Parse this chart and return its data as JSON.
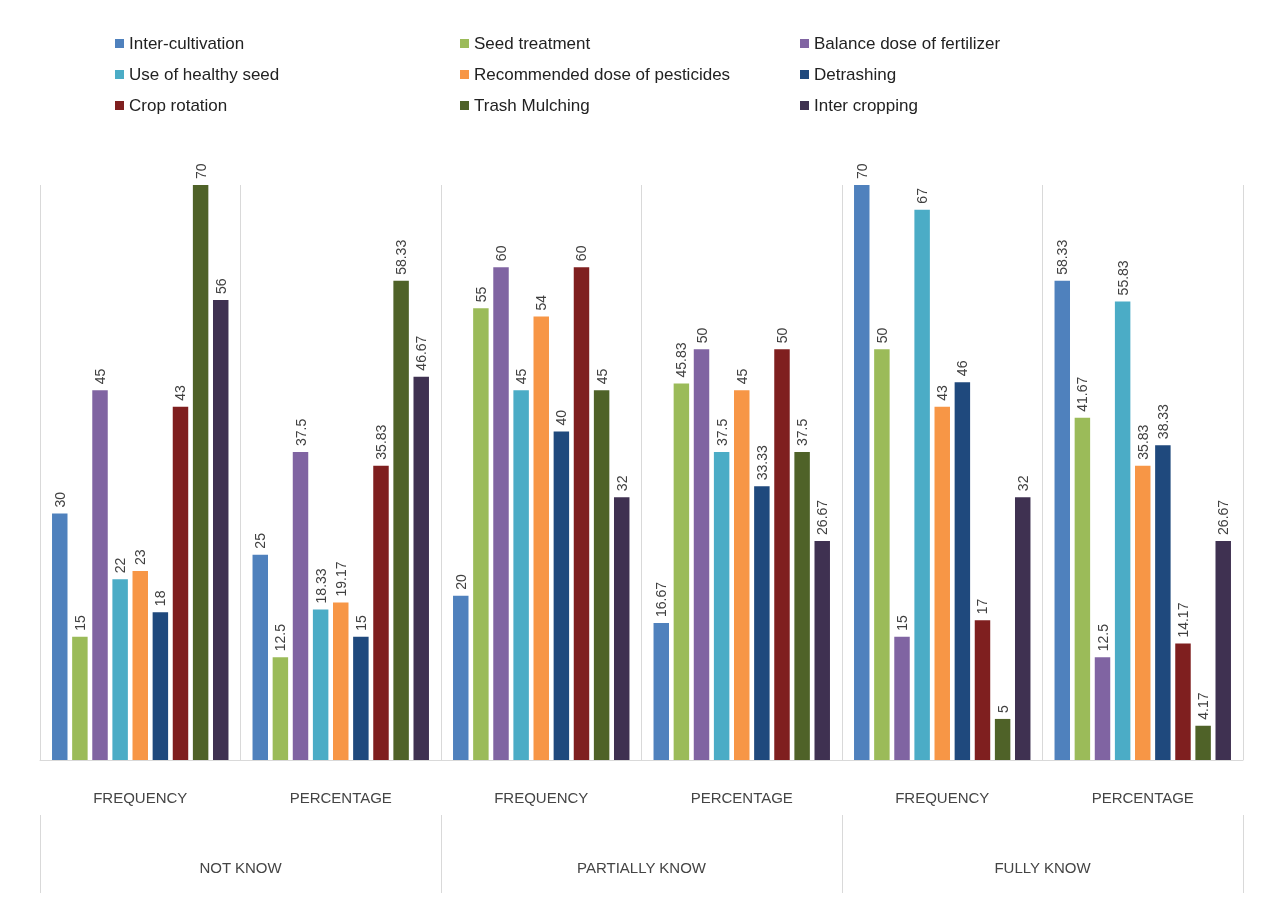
{
  "chart_data": {
    "type": "bar",
    "categories": [
      "FREQUENCY",
      "PERCENTAGE",
      "FREQUENCY",
      "PERCENTAGE",
      "FREQUENCY",
      "PERCENTAGE"
    ],
    "annotations": [
      "NOT KNOW",
      "PARTIALLY KNOW",
      "FULLY KNOW"
    ],
    "series": [
      {
        "name": "Inter-cultivation",
        "color": "#4f81bd",
        "values": [
          30,
          25,
          20,
          16.67,
          70,
          58.33
        ]
      },
      {
        "name": "Seed treatment",
        "color": "#9bbb59",
        "values": [
          15,
          12.5,
          55,
          45.83,
          50,
          41.67
        ]
      },
      {
        "name": "Balance dose of fertilizer",
        "color": "#8064a2",
        "values": [
          45,
          37.5,
          60,
          50,
          15,
          12.5
        ]
      },
      {
        "name": "Use of healthy seed",
        "color": "#4bacc6",
        "values": [
          22,
          18.33,
          45,
          37.5,
          67,
          55.83
        ]
      },
      {
        "name": "Recommended dose of pesticides",
        "color": "#f79646",
        "values": [
          23,
          19.17,
          54,
          45,
          43,
          35.83
        ]
      },
      {
        "name": "Detrashing",
        "color": "#1f497d",
        "values": [
          18,
          15,
          40,
          33.33,
          46,
          38.33
        ]
      },
      {
        "name": "Crop rotation",
        "color": "#7f1f1f",
        "values": [
          43,
          35.83,
          60,
          50,
          17,
          14.17
        ]
      },
      {
        "name": "Trash Mulching",
        "color": "#4f6228",
        "values": [
          70,
          58.33,
          45,
          37.5,
          5,
          4.17
        ]
      },
      {
        "name": "Inter cropping",
        "color": "#3f3151",
        "values": [
          56,
          46.67,
          32,
          26.67,
          32,
          26.67
        ]
      }
    ],
    "data_labels": true,
    "grid": "x",
    "legend": "top"
  }
}
